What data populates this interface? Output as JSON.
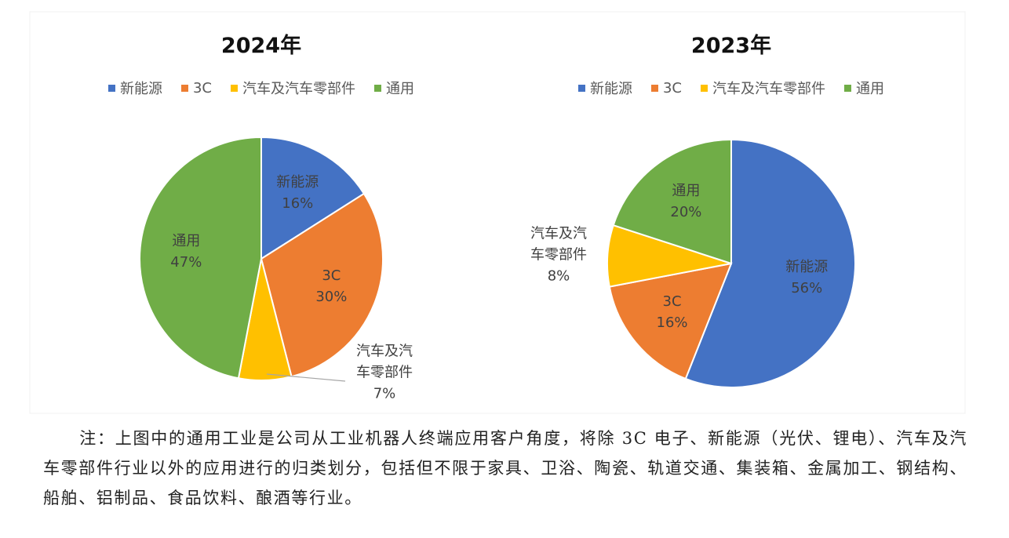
{
  "chart_data": [
    {
      "type": "pie",
      "title": "2024年",
      "categories": [
        "新能源",
        "3C",
        "汽车及汽车零部件",
        "通用"
      ],
      "values": [
        16,
        30,
        7,
        47
      ],
      "value_labels": [
        "16%",
        "30%",
        "7%",
        "47%"
      ],
      "colors": [
        "#4472c4",
        "#ed7d31",
        "#ffc000",
        "#70ad47"
      ]
    },
    {
      "type": "pie",
      "title": "2023年",
      "categories": [
        "新能源",
        "3C",
        "汽车及汽车零部件",
        "通用"
      ],
      "values": [
        56,
        16,
        8,
        20
      ],
      "value_labels": [
        "56%",
        "16%",
        "8%",
        "20%"
      ],
      "colors": [
        "#4472c4",
        "#ed7d31",
        "#ffc000",
        "#70ad47"
      ]
    }
  ],
  "note": "注：上图中的通用工业是公司从工业机器人终端应用客户角度，将除 3C 电子、新能源（光伏、锂电）、汽车及汽车零部件行业以外的应用进行的归类划分，包括但不限于家具、卫浴、陶瓷、轨道交通、集装箱、金属加工、钢结构、船舶、铝制品、食品饮料、酿酒等行业。"
}
